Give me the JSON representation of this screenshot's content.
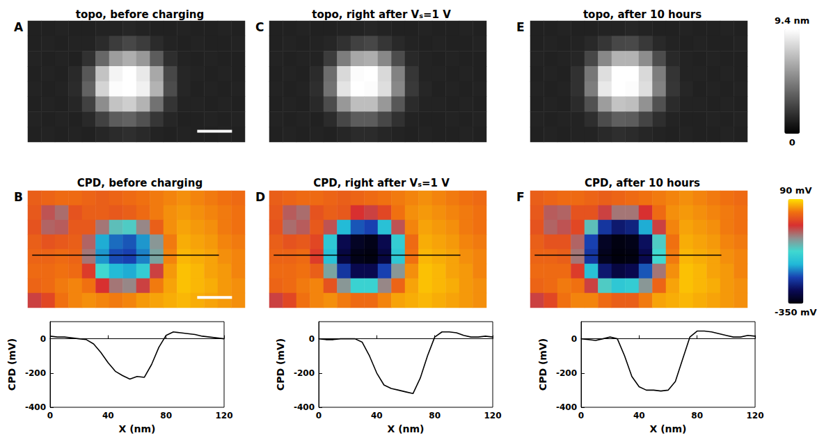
{
  "chart_data": [
    {
      "type": "heatmap",
      "panel": "A",
      "title": "topo, before charging",
      "tick_labels": false,
      "colorbar": {
        "range": [
          0,
          9.4
        ],
        "ticks": [
          0,
          {
            "value": 9.4,
            "label": "9.4 nm"
          }
        ]
      },
      "cells": [
        [
          1.2,
          1.2,
          1.3,
          1.2,
          1.2,
          1.3,
          1.3,
          1.4,
          1.3,
          1.2,
          1.2,
          1.3,
          1.2,
          1.2,
          1.3,
          1.2
        ],
        [
          1.2,
          1.3,
          1.2,
          1.3,
          1.3,
          1.6,
          2.2,
          2.6,
          2.2,
          1.6,
          1.3,
          1.2,
          1.3,
          1.2,
          1.2,
          1.3
        ],
        [
          1.3,
          1.2,
          1.3,
          1.2,
          1.8,
          3.8,
          5.8,
          6.4,
          5.6,
          3.4,
          1.7,
          1.3,
          1.2,
          1.3,
          1.2,
          1.2
        ],
        [
          1.2,
          1.3,
          1.2,
          1.5,
          3.2,
          7.2,
          9.0,
          9.4,
          8.6,
          6.2,
          2.6,
          1.4,
          1.3,
          1.2,
          1.3,
          1.2
        ],
        [
          1.3,
          1.2,
          1.3,
          1.6,
          3.6,
          7.8,
          9.3,
          9.4,
          8.9,
          6.6,
          2.8,
          1.4,
          1.2,
          1.3,
          1.2,
          1.3
        ],
        [
          1.2,
          1.3,
          1.2,
          1.4,
          2.4,
          5.2,
          7.2,
          7.6,
          6.6,
          4.2,
          1.9,
          1.3,
          1.3,
          1.2,
          1.3,
          1.2
        ],
        [
          1.3,
          1.2,
          1.3,
          1.2,
          1.5,
          2.4,
          3.4,
          3.6,
          3.0,
          2.0,
          1.4,
          1.2,
          1.2,
          1.3,
          1.2,
          1.3
        ],
        [
          1.2,
          1.3,
          1.2,
          1.3,
          1.2,
          1.4,
          1.6,
          1.7,
          1.5,
          1.3,
          1.2,
          1.3,
          1.2,
          1.2,
          1.3,
          1.2
        ]
      ]
    },
    {
      "type": "heatmap",
      "panel": "C",
      "title": "topo, right after Vₛ=1 V",
      "tick_labels": false,
      "colorbar": {
        "range": [
          0,
          9.4
        ],
        "ticks": [
          0,
          {
            "value": 9.4,
            "label": "9.4 nm"
          }
        ]
      },
      "cells": [
        [
          1.2,
          1.2,
          1.3,
          1.2,
          1.2,
          1.3,
          1.3,
          1.4,
          1.3,
          1.2,
          1.2,
          1.3,
          1.2,
          1.2,
          1.3,
          1.2
        ],
        [
          1.2,
          1.3,
          1.2,
          1.3,
          1.4,
          1.8,
          2.4,
          2.6,
          2.0,
          1.5,
          1.3,
          1.2,
          1.3,
          1.2,
          1.2,
          1.3
        ],
        [
          1.3,
          1.2,
          1.3,
          1.3,
          2.2,
          4.6,
          6.2,
          6.4,
          5.0,
          2.8,
          1.5,
          1.3,
          1.2,
          1.3,
          1.2,
          1.2
        ],
        [
          1.2,
          1.3,
          1.2,
          1.6,
          4.0,
          8.0,
          9.3,
          9.4,
          8.0,
          4.8,
          2.0,
          1.3,
          1.3,
          1.2,
          1.3,
          1.2
        ],
        [
          1.3,
          1.2,
          1.3,
          1.7,
          4.2,
          8.4,
          9.4,
          9.3,
          8.2,
          5.0,
          2.1,
          1.4,
          1.2,
          1.3,
          1.2,
          1.3
        ],
        [
          1.2,
          1.3,
          1.2,
          1.5,
          2.8,
          5.6,
          7.0,
          7.0,
          5.6,
          3.2,
          1.6,
          1.3,
          1.3,
          1.2,
          1.3,
          1.2
        ],
        [
          1.3,
          1.2,
          1.3,
          1.2,
          1.6,
          2.6,
          3.4,
          3.4,
          2.6,
          1.8,
          1.3,
          1.2,
          1.2,
          1.3,
          1.2,
          1.3
        ],
        [
          1.2,
          1.3,
          1.2,
          1.3,
          1.2,
          1.4,
          1.6,
          1.6,
          1.4,
          1.3,
          1.2,
          1.3,
          1.2,
          1.2,
          1.3,
          1.2
        ]
      ]
    },
    {
      "type": "heatmap",
      "panel": "E",
      "title": "topo, after 10 hours",
      "tick_labels": false,
      "colorbar": {
        "range": [
          0,
          9.4
        ],
        "ticks": [
          0,
          {
            "value": 9.4,
            "label": "9.4 nm"
          }
        ]
      },
      "cells": [
        [
          1.2,
          1.2,
          1.3,
          1.2,
          1.2,
          1.3,
          1.3,
          1.4,
          1.3,
          1.2,
          1.2,
          1.3,
          1.2,
          1.2,
          1.3,
          1.2
        ],
        [
          1.2,
          1.3,
          1.2,
          1.3,
          1.5,
          2.0,
          2.6,
          2.7,
          2.1,
          1.5,
          1.3,
          1.2,
          1.3,
          1.2,
          1.2,
          1.3
        ],
        [
          1.3,
          1.2,
          1.3,
          1.4,
          2.6,
          5.0,
          6.6,
          6.6,
          5.2,
          2.8,
          1.5,
          1.3,
          1.2,
          1.3,
          1.2,
          1.2
        ],
        [
          1.2,
          1.3,
          1.2,
          1.8,
          4.4,
          8.2,
          9.4,
          9.4,
          8.0,
          4.6,
          1.9,
          1.3,
          1.3,
          1.2,
          1.3,
          1.2
        ],
        [
          1.3,
          1.2,
          1.3,
          1.8,
          4.6,
          8.6,
          9.4,
          9.3,
          8.2,
          4.8,
          2.0,
          1.4,
          1.2,
          1.3,
          1.2,
          1.3
        ],
        [
          1.2,
          1.3,
          1.2,
          1.6,
          3.0,
          5.8,
          7.2,
          7.0,
          5.4,
          3.0,
          1.6,
          1.3,
          1.3,
          1.2,
          1.3,
          1.2
        ],
        [
          1.3,
          1.2,
          1.3,
          1.3,
          1.7,
          2.8,
          3.5,
          3.4,
          2.5,
          1.7,
          1.3,
          1.2,
          1.2,
          1.3,
          1.2,
          1.3
        ],
        [
          1.2,
          1.3,
          1.2,
          1.3,
          1.3,
          1.5,
          1.7,
          1.6,
          1.4,
          1.3,
          1.2,
          1.3,
          1.2,
          1.2,
          1.3,
          1.2
        ]
      ]
    },
    {
      "type": "heatmap",
      "panel": "B",
      "title": "CPD, before charging",
      "tick_labels": false,
      "colorbar": {
        "range": [
          -350,
          90
        ],
        "ticks": [
          {
            "value": -350,
            "label": "-350 mV"
          },
          {
            "value": 90,
            "label": "90 mV"
          }
        ]
      },
      "cells": [
        [
          20,
          25,
          30,
          30,
          25,
          20,
          25,
          30,
          35,
          40,
          45,
          50,
          45,
          40,
          35,
          30
        ],
        [
          15,
          -40,
          -55,
          10,
          20,
          20,
          15,
          20,
          30,
          40,
          50,
          55,
          50,
          45,
          40,
          35
        ],
        [
          10,
          -50,
          -45,
          15,
          15,
          -60,
          -110,
          -120,
          -70,
          20,
          50,
          60,
          55,
          50,
          40,
          35
        ],
        [
          20,
          10,
          15,
          20,
          -50,
          -190,
          -220,
          -230,
          -200,
          -80,
          40,
          65,
          60,
          55,
          45,
          40
        ],
        [
          25,
          25,
          30,
          25,
          -60,
          -200,
          -235,
          -240,
          -210,
          -90,
          45,
          70,
          65,
          60,
          50,
          45
        ],
        [
          30,
          30,
          35,
          30,
          -10,
          -130,
          -180,
          -190,
          -150,
          -30,
          55,
          75,
          70,
          60,
          55,
          45
        ],
        [
          25,
          30,
          40,
          45,
          35,
          -20,
          -60,
          -70,
          -30,
          40,
          60,
          75,
          70,
          65,
          55,
          50
        ],
        [
          -30,
          0,
          35,
          45,
          50,
          45,
          40,
          45,
          55,
          60,
          65,
          70,
          65,
          60,
          55,
          50
        ]
      ]
    },
    {
      "type": "heatmap",
      "panel": "D",
      "title": "CPD, right after Vₛ=1 V",
      "tick_labels": false,
      "colorbar": {
        "range": [
          -350,
          90
        ],
        "ticks": [
          {
            "value": -350,
            "label": "-350 mV"
          },
          {
            "value": 90,
            "label": "90 mV"
          }
        ]
      },
      "cells": [
        [
          20,
          25,
          30,
          30,
          25,
          20,
          25,
          30,
          35,
          40,
          45,
          50,
          45,
          40,
          35,
          30
        ],
        [
          15,
          -45,
          -55,
          10,
          20,
          15,
          -20,
          -30,
          0,
          35,
          50,
          55,
          50,
          45,
          40,
          35
        ],
        [
          10,
          -55,
          -45,
          15,
          -40,
          -180,
          -230,
          -240,
          -170,
          -40,
          45,
          60,
          55,
          50,
          40,
          35
        ],
        [
          20,
          10,
          15,
          0,
          -160,
          -300,
          -330,
          -340,
          -300,
          -150,
          30,
          65,
          60,
          55,
          45,
          40
        ],
        [
          25,
          25,
          30,
          -10,
          -170,
          -310,
          -340,
          -345,
          -310,
          -160,
          35,
          70,
          65,
          60,
          50,
          45
        ],
        [
          30,
          30,
          35,
          20,
          -90,
          -250,
          -300,
          -300,
          -240,
          -80,
          50,
          75,
          70,
          60,
          55,
          45
        ],
        [
          25,
          30,
          40,
          45,
          10,
          -80,
          -140,
          -140,
          -70,
          25,
          60,
          75,
          70,
          65,
          55,
          50
        ],
        [
          -30,
          0,
          35,
          45,
          50,
          40,
          30,
          30,
          45,
          60,
          65,
          70,
          65,
          60,
          55,
          50
        ]
      ]
    },
    {
      "type": "heatmap",
      "panel": "F",
      "title": "CPD, after 10 hours",
      "tick_labels": false,
      "colorbar": {
        "range": [
          -350,
          90
        ],
        "ticks": [
          {
            "value": -350,
            "label": "-350 mV"
          },
          {
            "value": 90,
            "label": "90 mV"
          }
        ]
      },
      "cells": [
        [
          20,
          25,
          30,
          30,
          25,
          20,
          25,
          30,
          35,
          40,
          45,
          50,
          45,
          40,
          35,
          30
        ],
        [
          15,
          -45,
          -50,
          10,
          10,
          -30,
          -60,
          -60,
          -20,
          30,
          50,
          55,
          50,
          45,
          40,
          35
        ],
        [
          10,
          -50,
          -40,
          0,
          -110,
          -250,
          -280,
          -270,
          -190,
          -30,
          45,
          60,
          55,
          50,
          40,
          35
        ],
        [
          20,
          10,
          10,
          -50,
          -240,
          -330,
          -345,
          -340,
          -290,
          -120,
          35,
          65,
          60,
          55,
          45,
          40
        ],
        [
          25,
          25,
          20,
          -60,
          -250,
          -335,
          -348,
          -345,
          -300,
          -130,
          40,
          70,
          65,
          60,
          50,
          45
        ],
        [
          30,
          30,
          30,
          -10,
          -170,
          -280,
          -310,
          -300,
          -230,
          -60,
          50,
          75,
          70,
          60,
          55,
          45
        ],
        [
          25,
          30,
          40,
          35,
          -30,
          -120,
          -160,
          -150,
          -80,
          25,
          60,
          75,
          70,
          65,
          55,
          50
        ],
        [
          -30,
          0,
          35,
          45,
          45,
          30,
          20,
          20,
          40,
          60,
          65,
          70,
          65,
          60,
          55,
          50
        ]
      ]
    },
    {
      "type": "line",
      "x_label": "X (nm)",
      "y_label": "CPD (mV)",
      "color": "#000000",
      "grid": false,
      "xlim": [
        0,
        120
      ],
      "xticks": [
        0,
        40,
        80,
        120
      ],
      "ylim": [
        -400,
        100
      ],
      "yticks": [
        -400,
        -200,
        0
      ],
      "x": [
        0,
        5,
        10,
        15,
        20,
        25,
        30,
        35,
        40,
        45,
        50,
        55,
        60,
        65,
        70,
        75,
        80,
        85,
        90,
        95,
        100,
        105,
        110,
        115,
        120
      ],
      "values": [
        15,
        10,
        10,
        5,
        0,
        -5,
        -30,
        -80,
        -140,
        -190,
        -215,
        -235,
        -220,
        -225,
        -150,
        -50,
        20,
        40,
        35,
        30,
        25,
        15,
        10,
        5,
        0
      ]
    },
    {
      "type": "line",
      "x_label": "X (nm)",
      "y_label": "CPD (mV)",
      "color": "#000000",
      "grid": false,
      "xlim": [
        0,
        120
      ],
      "xticks": [
        0,
        40,
        80,
        120
      ],
      "ylim": [
        -400,
        100
      ],
      "yticks": [
        -400,
        -200,
        0
      ],
      "x": [
        0,
        5,
        10,
        15,
        20,
        25,
        30,
        35,
        40,
        45,
        50,
        55,
        60,
        65,
        70,
        75,
        80,
        85,
        90,
        95,
        100,
        105,
        110,
        115,
        120
      ],
      "values": [
        0,
        -5,
        -5,
        0,
        0,
        0,
        -20,
        -100,
        -200,
        -270,
        -290,
        -300,
        -310,
        -320,
        -230,
        -100,
        10,
        40,
        40,
        35,
        20,
        10,
        10,
        15,
        10
      ]
    },
    {
      "type": "line",
      "x_label": "X (nm)",
      "y_label": "CPD (mV)",
      "color": "#000000",
      "grid": false,
      "xlim": [
        0,
        120
      ],
      "xticks": [
        0,
        40,
        80,
        120
      ],
      "ylim": [
        -400,
        100
      ],
      "yticks": [
        -400,
        -200,
        0
      ],
      "x": [
        0,
        5,
        10,
        15,
        20,
        25,
        30,
        35,
        40,
        45,
        50,
        55,
        60,
        65,
        70,
        75,
        80,
        85,
        90,
        95,
        100,
        105,
        110,
        115,
        120
      ],
      "values": [
        0,
        -5,
        -10,
        0,
        10,
        0,
        -100,
        -220,
        -280,
        -300,
        -300,
        -305,
        -300,
        -250,
        -120,
        10,
        45,
        45,
        40,
        30,
        20,
        10,
        10,
        20,
        15
      ]
    }
  ]
}
